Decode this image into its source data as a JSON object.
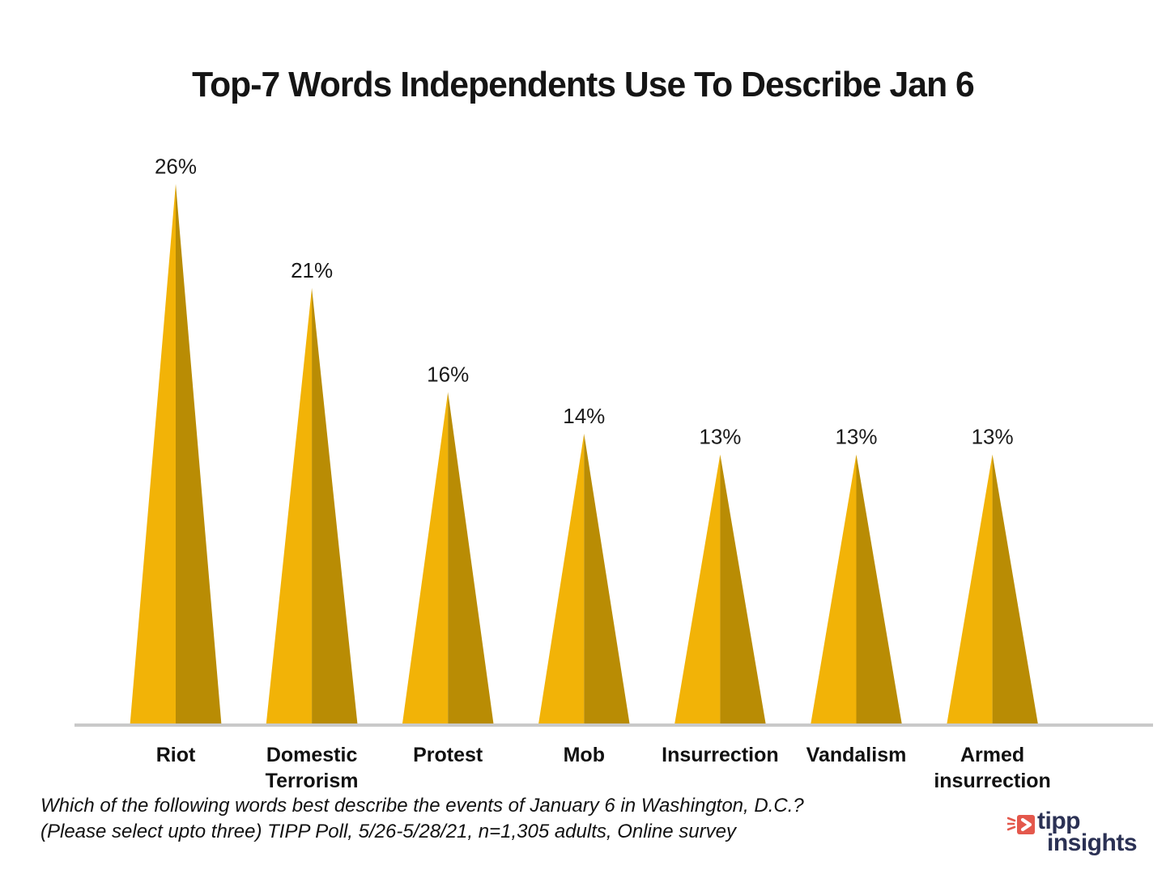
{
  "title": "Top-7 Words Independents Use To Describe Jan 6",
  "chart_data": {
    "type": "bar",
    "variant": "triangle-cone",
    "title": "Top-7 Words Independents Use To Describe Jan 6",
    "categories": [
      "Riot",
      "Domestic Terrorism",
      "Protest",
      "Mob",
      "Insurrection",
      "Vandalism",
      "Armed insurrection"
    ],
    "values": [
      26,
      21,
      16,
      14,
      13,
      13,
      13
    ],
    "value_labels": [
      "26%",
      "21%",
      "16%",
      "14%",
      "13%",
      "13%",
      "13%"
    ],
    "unit": "%",
    "xlabel": "",
    "ylabel": "",
    "ylim": [
      0,
      26
    ],
    "grid": false,
    "legend": false,
    "colors": {
      "cone_left": "#F2B307",
      "cone_right": "#B98C04",
      "axis_line": "#C9C9C9",
      "value_label": "#1A1A1A",
      "category_label": "#111111"
    }
  },
  "footnote": {
    "line1": "Which of the following words best describe the events of January 6 in Washington, D.C.?",
    "line2": "(Please select upto three) TIPP Poll, 5/26-5/28/21, n=1,305 adults, Online survey"
  },
  "logo": {
    "word1": "tipp",
    "word2": "insights",
    "text_color": "#2B3154",
    "icon_color": "#E4584C"
  }
}
